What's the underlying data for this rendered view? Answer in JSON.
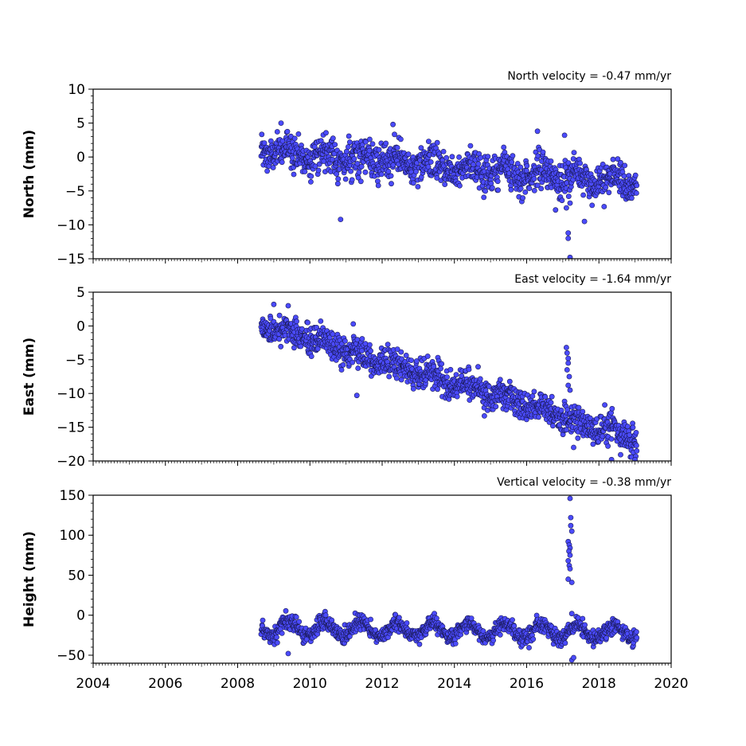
{
  "chart_data": [
    {
      "type": "scatter",
      "annotation": "North velocity = -0.47 mm/yr",
      "ylabel": "North (mm)",
      "ylim": [
        -15,
        10
      ],
      "yticks": [
        10,
        5,
        0,
        -5,
        -10,
        -15
      ],
      "xlim": [
        2004,
        2020
      ],
      "xticks": [
        2004,
        2006,
        2008,
        2010,
        2012,
        2014,
        2016,
        2018,
        2020
      ],
      "show_x_tick_labels": false,
      "data_start": 2008.65,
      "data_end": 2019.05,
      "trend_intercept": 1.0,
      "trend_slope": -0.47,
      "annual_amplitude": 0.8,
      "noise": 1.3,
      "trend": {
        "x": [
          2008.65,
          2019.05
        ],
        "y": [
          1.0,
          -3.9
        ]
      },
      "outliers": [
        {
          "x": 2010.85,
          "y": -9.2
        },
        {
          "x": 2017.15,
          "y": -11.2
        },
        {
          "x": 2017.15,
          "y": -12.0
        },
        {
          "x": 2017.2,
          "y": -14.8
        },
        {
          "x": 2017.1,
          "y": -7.5
        },
        {
          "x": 2017.2,
          "y": -6.8
        },
        {
          "x": 2017.05,
          "y": 3.2
        },
        {
          "x": 2016.3,
          "y": 3.8
        },
        {
          "x": 2017.6,
          "y": -9.5
        },
        {
          "x": 2016.8,
          "y": -7.8
        },
        {
          "x": 2012.3,
          "y": 4.8
        },
        {
          "x": 2009.2,
          "y": 5.0
        }
      ]
    },
    {
      "type": "scatter",
      "annotation": "East velocity = -1.64 mm/yr",
      "ylabel": "East (mm)",
      "ylim": [
        -20,
        5
      ],
      "yticks": [
        5,
        0,
        -5,
        -10,
        -15,
        -20
      ],
      "xlim": [
        2004,
        2020
      ],
      "xticks": [
        2004,
        2006,
        2008,
        2010,
        2012,
        2014,
        2016,
        2018,
        2020
      ],
      "show_x_tick_labels": false,
      "data_start": 2008.65,
      "data_end": 2019.05,
      "trend_intercept": 0.3,
      "trend_slope": -1.64,
      "annual_amplitude": 0.6,
      "noise": 1.1,
      "trend": {
        "x": [
          2008.65,
          2019.05
        ],
        "y": [
          0.3,
          -16.8
        ]
      },
      "outliers": [
        {
          "x": 2017.1,
          "y": -3.2
        },
        {
          "x": 2017.12,
          "y": -4.0
        },
        {
          "x": 2017.15,
          "y": -4.8
        },
        {
          "x": 2017.15,
          "y": -5.5
        },
        {
          "x": 2017.12,
          "y": -6.5
        },
        {
          "x": 2017.18,
          "y": -7.5
        },
        {
          "x": 2017.15,
          "y": -8.8
        },
        {
          "x": 2017.2,
          "y": -9.5
        },
        {
          "x": 2009.0,
          "y": 3.2
        },
        {
          "x": 2009.4,
          "y": 3.0
        },
        {
          "x": 2011.2,
          "y": 0.3
        },
        {
          "x": 2011.3,
          "y": -10.3
        },
        {
          "x": 2017.3,
          "y": -18.0
        },
        {
          "x": 2018.35,
          "y": -19.8
        },
        {
          "x": 2019.0,
          "y": -19.8
        }
      ]
    },
    {
      "type": "scatter",
      "annotation": "Vertical velocity = -0.38 mm/yr",
      "ylabel": "Height (mm)",
      "ylim": [
        -60,
        150
      ],
      "yticks": [
        150,
        100,
        50,
        0,
        -50
      ],
      "xlim": [
        2004,
        2020
      ],
      "xticks": [
        2004,
        2006,
        2008,
        2010,
        2012,
        2014,
        2016,
        2018,
        2020
      ],
      "show_x_tick_labels": true,
      "data_start": 2008.65,
      "data_end": 2019.05,
      "trend_intercept": -17,
      "trend_slope": -0.38,
      "annual_amplitude": 9,
      "noise": 5,
      "trend": {
        "x": [
          2008.65,
          2019.05
        ],
        "y": [
          -17.0,
          -21.0
        ]
      },
      "outliers": [
        {
          "x": 2017.2,
          "y": 146
        },
        {
          "x": 2017.22,
          "y": 122
        },
        {
          "x": 2017.22,
          "y": 112
        },
        {
          "x": 2017.25,
          "y": 105
        },
        {
          "x": 2017.15,
          "y": 92
        },
        {
          "x": 2017.18,
          "y": 88
        },
        {
          "x": 2017.2,
          "y": 84
        },
        {
          "x": 2017.17,
          "y": 80
        },
        {
          "x": 2017.2,
          "y": 75
        },
        {
          "x": 2017.15,
          "y": 68
        },
        {
          "x": 2017.18,
          "y": 62
        },
        {
          "x": 2017.2,
          "y": 58
        },
        {
          "x": 2017.15,
          "y": 45
        },
        {
          "x": 2017.25,
          "y": 41
        },
        {
          "x": 2017.25,
          "y": 2
        },
        {
          "x": 2017.25,
          "y": -56
        },
        {
          "x": 2017.3,
          "y": -53
        },
        {
          "x": 2009.4,
          "y": -48
        }
      ]
    }
  ]
}
